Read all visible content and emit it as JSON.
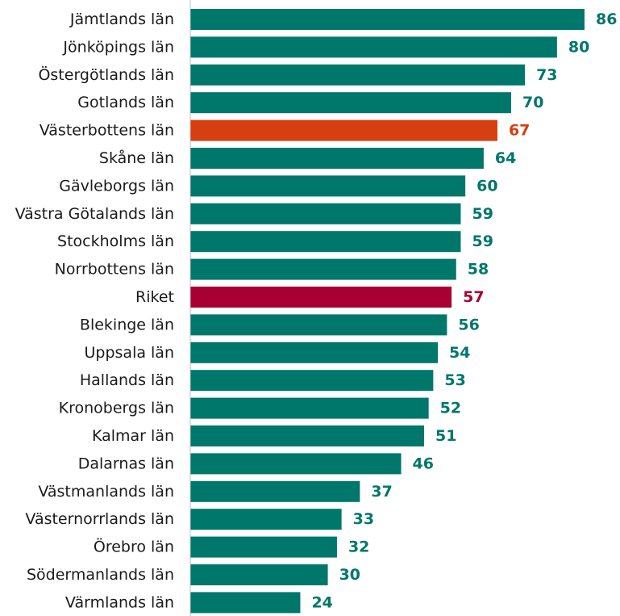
{
  "chart_data": {
    "type": "bar",
    "orientation": "horizontal",
    "categories": [
      "Jämtlands län",
      "Jönköpings län",
      "Östergötlands län",
      "Gotlands län",
      "Västerbottens län",
      "Skåne län",
      "Gävleborgs län",
      "Västra Götalands län",
      "Stockholms län",
      "Norrbottens län",
      "Riket",
      "Blekinge län",
      "Uppsala län",
      "Hallands län",
      "Kronobergs län",
      "Kalmar län",
      "Dalarnas län",
      "Västmanlands län",
      "Västernorrlands län",
      "Örebro län",
      "Södermanlands län",
      "Värmlands län"
    ],
    "values": [
      86,
      80,
      73,
      70,
      67,
      64,
      60,
      59,
      59,
      58,
      57,
      56,
      54,
      53,
      52,
      51,
      46,
      37,
      33,
      32,
      30,
      24
    ],
    "value_labels": [
      "86",
      "80",
      "73",
      "70",
      "67",
      "64",
      "60",
      "59",
      "59",
      "58",
      "57",
      "56",
      "54",
      "53",
      "52",
      "51",
      "46",
      "37",
      "33",
      "32",
      "30",
      "24"
    ],
    "xlim": [
      0,
      86
    ],
    "grid": false,
    "legend": "none",
    "colors": {
      "default": "#00776b",
      "highlight": "#d63f12",
      "national": "#a80032",
      "axis": "#bfbfbf"
    },
    "bar_colors": [
      "default",
      "default",
      "default",
      "default",
      "highlight",
      "default",
      "default",
      "default",
      "default",
      "default",
      "national",
      "default",
      "default",
      "default",
      "default",
      "default",
      "default",
      "default",
      "default",
      "default",
      "default",
      "default"
    ]
  }
}
